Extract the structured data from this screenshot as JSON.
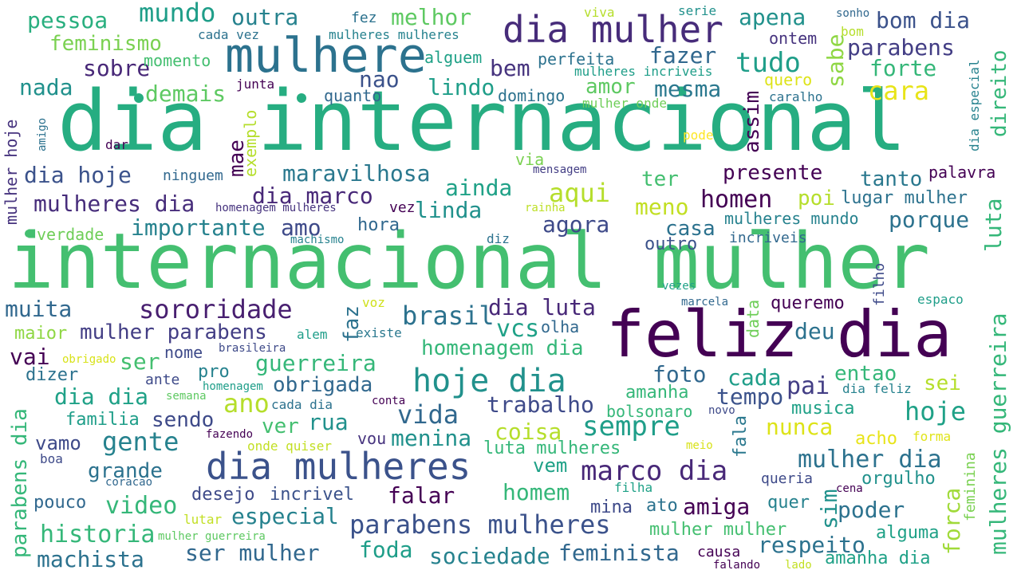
{
  "words": {
    "w0": "dia internacional",
    "w1": "internacional mulher",
    "w2": "feliz dia",
    "w3": "mulhere",
    "w4": "dia mulher",
    "w5": "dia mulheres",
    "w6": "hoje dia",
    "w7": "parabens mulheres",
    "w8": "sempre",
    "w9": "marco dia",
    "w10": "sororidade",
    "w11": "gente",
    "w12": "mulher dia",
    "w13": "vida",
    "w14": "hoje",
    "w15": "mundo",
    "w16": "pessoa",
    "w17": "outra",
    "w18": "melhor",
    "w19": "apena",
    "w20": "bom dia",
    "w21": "feminismo",
    "w22": "parabens",
    "w23": "sobre",
    "w24": "momento",
    "w25": "alguem",
    "w26": "perfeita",
    "w27": "fazer",
    "w28": "tudo",
    "w29": "forte",
    "w30": "nada",
    "w31": "nao",
    "w32": "bem",
    "w33": "lindo",
    "w34": "amor",
    "w35": "mesma",
    "w36": "cara",
    "w37": "demais",
    "w38": "quanto",
    "w39": "domingo",
    "w40": "dia hoje",
    "w41": "maravilhosa",
    "w42": "presente",
    "w43": "tanto",
    "w44": "ter",
    "w45": "dia marco",
    "w46": "ainda",
    "w47": "aqui",
    "w48": "homen",
    "w49": "poi",
    "w50": "lugar mulher",
    "w51": "mulheres dia",
    "w52": "linda",
    "w53": "meno",
    "w54": "porque",
    "w55": "importante",
    "w56": "amo",
    "w57": "agora",
    "w58": "casa",
    "w59": "mulheres mundo",
    "w60": "hora",
    "w61": "outro",
    "w62": "verdade",
    "w63": "muita",
    "w64": "brasil",
    "w65": "dia luta",
    "w66": "queremo",
    "w67": "faz",
    "w68": "maior",
    "w69": "mulher parabens",
    "w70": "vcs",
    "w71": "deu",
    "w72": "vai",
    "w73": "ser",
    "w74": "homenagem dia",
    "w75": "guerreira",
    "w76": "foto",
    "w77": "cada",
    "w78": "entao",
    "w79": "sei",
    "w80": "dizer",
    "w81": "pro",
    "w82": "obrigada",
    "w83": "amanha",
    "w84": "tempo",
    "w85": "pai",
    "w86": "dia dia",
    "w87": "ano",
    "w88": "trabalho",
    "w89": "sendo",
    "w90": "familia",
    "w91": "ver",
    "w92": "rua",
    "w93": "musica",
    "w94": "coisa",
    "w95": "nunca",
    "w96": "vamo",
    "w97": "menina",
    "w98": "vou",
    "w99": "grande",
    "w100": "luta mulheres",
    "w101": "vem",
    "w102": "acho",
    "w103": "forma",
    "w104": "pouco",
    "w105": "video",
    "w106": "desejo",
    "w107": "incrivel",
    "w108": "homem",
    "w109": "queria",
    "w110": "orgulho",
    "w111": "falar",
    "w112": "mina",
    "w113": "ato",
    "w114": "amiga",
    "w115": "quer",
    "w116": "poder",
    "w117": "historia",
    "w118": "especial",
    "w119": "mulher mulher",
    "w120": "alguma",
    "w121": "machista",
    "w122": "ser mulher",
    "w123": "foda",
    "w124": "sociedade",
    "w125": "feminista",
    "w126": "respeito",
    "w127": "causa",
    "w128": "amanha dia",
    "w129": "cada vez",
    "w130": "fez",
    "w131": "mulheres mulheres",
    "w132": "viva",
    "w133": "serie",
    "w134": "sonho",
    "w135": "ontem",
    "w136": "bom",
    "w137": "mulheres incriveis",
    "w138": "quero",
    "w139": "junta",
    "w140": "mulher onde",
    "w141": "caralho",
    "w142": "dar",
    "w143": "pode",
    "w144": "via",
    "w145": "mensagem",
    "w146": "palavra",
    "w147": "ninguem",
    "w148": "homenagem mulheres",
    "w149": "vez",
    "w150": "rainha",
    "w151": "machismo",
    "w152": "diz",
    "w153": "incriveis",
    "w154": "vezes",
    "w155": "marcela",
    "w156": "espaco",
    "w157": "voz",
    "w158": "alem",
    "w159": "existe",
    "w160": "olha",
    "w161": "nome",
    "w162": "brasileira",
    "w163": "obrigado",
    "w164": "ante",
    "w165": "semana",
    "w166": "homenagem",
    "w167": "cada dia",
    "w168": "conta",
    "w169": "dia feliz",
    "w170": "novo",
    "w171": "bolsonaro",
    "w172": "fazendo",
    "w173": "onde quiser",
    "w174": "boa",
    "w175": "coracao",
    "w176": "meio",
    "w177": "filha",
    "w178": "cena",
    "w179": "lutar",
    "w180": "mulher guerreira",
    "w181": "falando",
    "w182": "lado",
    "w183": "assim",
    "w184": "sabe",
    "w185": "direito",
    "w186": "dia especial",
    "w187": "mae",
    "w188": "exemplo",
    "w189": "mulher hoje",
    "w190": "amigo",
    "w191": "luta",
    "w192": "filho",
    "w193": "data",
    "w194": "parabens dia",
    "w195": "fala",
    "w196": "sim",
    "w197": "forca",
    "w198": "feminina",
    "w199": "mulheres guerreira"
  },
  "colors": {
    "dark_purple": "#440154",
    "indigo": "#3e4a89",
    "blue": "#31688e",
    "teal": "#26828e",
    "green_teal": "#1f9e89",
    "green": "#35b779",
    "light_green": "#6ece58",
    "lime": "#b5de2b",
    "yellow": "#fde725",
    "background": "#ffffff"
  }
}
